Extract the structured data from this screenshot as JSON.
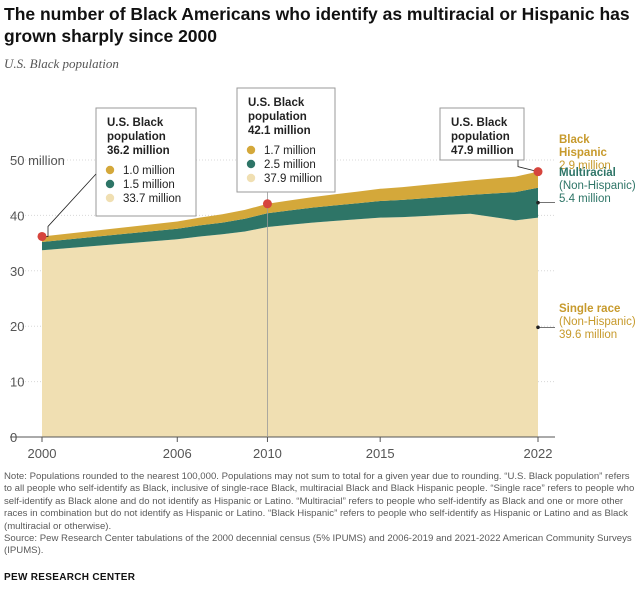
{
  "title": "The number of Black Americans who identify as multiracial or Hispanic has grown sharply since 2000",
  "subtitle": "U.S. Black population",
  "colors": {
    "single_race": "#f0dfb2",
    "multiracial": "#2e7567",
    "black_hispanic": "#d4a83a",
    "marker": "#d6453d",
    "label_gold": "#c79a2c",
    "label_green": "#2e7567"
  },
  "chart_data": {
    "type": "area",
    "stacked": true,
    "x": [
      2000,
      2006,
      2007,
      2008,
      2009,
      2010,
      2011,
      2012,
      2013,
      2014,
      2015,
      2016,
      2017,
      2018,
      2019,
      2021,
      2022
    ],
    "series": [
      {
        "name": "Single race (Non-Hispanic)",
        "values": [
          33.7,
          35.7,
          36.2,
          36.6,
          37.1,
          37.9,
          38.3,
          38.7,
          39.0,
          39.3,
          39.6,
          39.7,
          39.9,
          40.1,
          40.3,
          39.1,
          39.6
        ]
      },
      {
        "name": "Multiracial (Non-Hispanic)",
        "values": [
          1.5,
          1.9,
          2.0,
          2.1,
          2.3,
          2.5,
          2.6,
          2.7,
          2.8,
          2.9,
          3.0,
          3.1,
          3.2,
          3.3,
          3.4,
          5.1,
          5.4
        ]
      },
      {
        "name": "Black Hispanic",
        "values": [
          1.0,
          1.3,
          1.4,
          1.5,
          1.6,
          1.7,
          1.8,
          1.9,
          2.0,
          2.1,
          2.2,
          2.3,
          2.4,
          2.5,
          2.6,
          2.8,
          2.9
        ]
      }
    ],
    "totals": [
      36.2,
      38.9,
      39.6,
      40.2,
      41.0,
      42.1,
      42.7,
      43.3,
      43.8,
      44.3,
      44.8,
      45.1,
      45.5,
      45.9,
      46.3,
      47.0,
      47.9
    ],
    "ylim": [
      0,
      50
    ],
    "y_ticks": [
      0,
      10,
      20,
      30,
      40,
      50
    ],
    "y_tick_labels": [
      "0",
      "10",
      "20",
      "30",
      "40",
      "50 million"
    ],
    "x_ticks": [
      2000,
      2006,
      2010,
      2015,
      2022
    ],
    "x_tick_labels": [
      "2000",
      "2006",
      "2010",
      "2015",
      "2022"
    ],
    "grid": true,
    "callouts": [
      {
        "year": 2000,
        "heading": "U.S. Black population",
        "total": "36.2 million",
        "rows": [
          {
            "series": 2,
            "text": "1.0 million"
          },
          {
            "series": 1,
            "text": "1.5 million"
          },
          {
            "series": 0,
            "text": "33.7 million"
          }
        ]
      },
      {
        "year": 2010,
        "heading": "U.S. Black population",
        "total": "42.1 million",
        "rows": [
          {
            "series": 2,
            "text": "1.7 million"
          },
          {
            "series": 1,
            "text": "2.5 million"
          },
          {
            "series": 0,
            "text": "37.9 million"
          }
        ]
      },
      {
        "year": 2022,
        "heading": "U.S. Black population",
        "total": "47.9 million",
        "rows": []
      }
    ],
    "end_labels": [
      {
        "series": 2,
        "name": [
          "Black",
          "Hispanic"
        ],
        "qualifier": "",
        "value": "2.9 million"
      },
      {
        "series": 1,
        "name": [
          "Multiracial"
        ],
        "qualifier": "(Non-Hispanic)",
        "value": "5.4 million"
      },
      {
        "series": 0,
        "name": [
          "Single race"
        ],
        "qualifier": "(Non-Hispanic)",
        "value": "39.6 million"
      }
    ]
  },
  "notes": "Note: Populations rounded to the nearest 100,000. Populations may not sum to total for a given year due to rounding. “U.S. Black population” refers to all people who self-identify as Black, inclusive of single-race Black, multiracial Black and Black Hispanic people. “Single race” refers to people who self-identify as Black alone and do not identify as Hispanic or Latino. “Multiracial” refers to people who self-identify as Black and one or more other races in combination but do not identify as Hispanic or Latino. “Black Hispanic” refers to people who self-identify as Hispanic or Latino and as Black (multiracial or otherwise).",
  "source": "Source: Pew Research Center tabulations of the 2000 decennial census (5% IPUMS) and 2006-2019 and 2021-2022 American Community Surveys (IPUMS).",
  "brand": "PEW RESEARCH CENTER"
}
